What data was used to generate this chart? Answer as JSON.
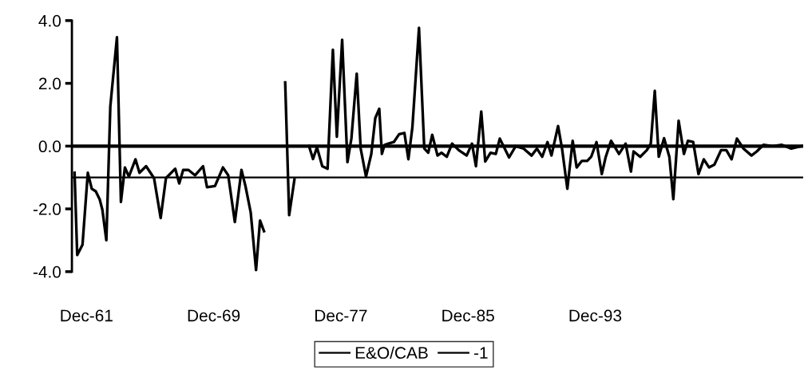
{
  "chart_data": {
    "type": "line",
    "legend": "bottom",
    "grid": false,
    "marker": "none",
    "line_style": "solid",
    "xlim": [
      "1961-01",
      "2007-01"
    ],
    "ylim": [
      -4.0,
      4.0
    ],
    "xticks": [
      {
        "value": "1961-12",
        "label": "Dec-61"
      },
      {
        "value": "1969-12",
        "label": "Dec-69"
      },
      {
        "value": "1977-12",
        "label": "Dec-77"
      },
      {
        "value": "1985-12",
        "label": "Dec-85"
      },
      {
        "value": "1993-12",
        "label": "Dec-93"
      }
    ],
    "yticks": [
      {
        "value": -4,
        "label": "-4.0"
      },
      {
        "value": -2,
        "label": "-2.0"
      },
      {
        "value": 0,
        "label": "0.0"
      },
      {
        "value": 2,
        "label": "2.0"
      },
      {
        "value": 4,
        "label": "4.0"
      }
    ],
    "ref_lines": [
      {
        "axis": "y",
        "value": 0,
        "color": "#000000"
      }
    ],
    "series": [
      {
        "name": "E&O/CAB",
        "color": "#000000",
        "x": [
          "1961-03",
          "1961-05",
          "1961-09",
          "1962-01",
          "1962-04",
          "1962-07",
          "1962-10",
          "1962-12",
          "1963-03",
          "1963-06",
          "1963-11",
          "1964-02",
          "1964-05",
          "1964-08",
          "1965-01",
          "1965-04",
          "1965-09",
          "1966-03",
          "1966-08",
          "1966-12",
          "1967-07",
          "1967-10",
          "1968-01",
          "1968-05",
          "1968-10",
          "1969-04",
          "1969-07",
          "1970-01",
          "1970-07",
          "1970-11",
          "1971-04",
          "1971-09",
          "1971-12",
          "1972-04",
          "1972-08",
          "1972-11",
          "1973-02",
          "1973-08",
          "1974-06",
          "1974-09",
          "1975-01",
          "1975-06",
          "1975-12",
          "1976-03",
          "1976-06",
          "1976-10",
          "1977-02",
          "1977-06",
          "1977-09",
          "1978-01",
          "1978-05",
          "1978-08",
          "1978-12",
          "1979-03",
          "1979-07",
          "1979-11",
          "1980-02",
          "1980-05",
          "1980-07",
          "1980-09",
          "1980-12",
          "1981-04",
          "1981-08",
          "1981-12",
          "1982-03",
          "1982-06",
          "1982-11",
          "1983-03",
          "1983-06",
          "1983-09",
          "1984-01",
          "1984-04",
          "1984-08",
          "1984-12",
          "1985-05",
          "1985-11",
          "1986-03",
          "1986-06",
          "1986-10",
          "1987-01",
          "1987-05",
          "1987-09",
          "1987-12",
          "1988-07",
          "1988-12",
          "1989-06",
          "1989-12",
          "1990-04",
          "1990-08",
          "1990-12",
          "1991-03",
          "1991-08",
          "1991-11",
          "1992-03",
          "1992-07",
          "1992-10",
          "1993-02",
          "1993-06",
          "1993-09",
          "1994-01",
          "1994-05",
          "1994-08",
          "1994-12",
          "1995-06",
          "1995-11",
          "1996-03",
          "1996-05",
          "1996-10",
          "1997-03",
          "1997-06",
          "1997-09",
          "1997-12",
          "1998-04",
          "1998-08",
          "1998-11",
          "1999-03",
          "1999-07",
          "1999-10",
          "2000-02",
          "2000-06",
          "2000-10",
          "2001-02",
          "2001-06",
          "2001-11",
          "2002-03",
          "2002-07",
          "2002-11",
          "2003-04",
          "2003-10",
          "2004-02",
          "2004-07",
          "2005-02",
          "2005-09",
          "2006-04",
          "2006-12"
        ],
        "values": [
          -0.85,
          -3.47,
          -3.14,
          -0.85,
          -1.36,
          -1.44,
          -1.7,
          -2.03,
          -3.0,
          1.27,
          3.47,
          -1.78,
          -0.68,
          -0.97,
          -0.42,
          -0.85,
          -0.64,
          -1.02,
          -2.29,
          -1.02,
          -0.72,
          -1.19,
          -0.76,
          -0.76,
          -0.93,
          -0.64,
          -1.31,
          -1.27,
          -0.68,
          -0.93,
          -2.42,
          -0.76,
          -1.27,
          -2.12,
          -3.95,
          -2.37,
          -2.71,
          null,
          2.03,
          -2.2,
          -1.06,
          null,
          0,
          -0.41,
          -0.04,
          -0.64,
          -0.72,
          3.07,
          0.3,
          3.39,
          -0.51,
          0.25,
          2.31,
          -0.08,
          -0.97,
          -0.25,
          0.89,
          1.19,
          -0.25,
          0.04,
          0.08,
          0.13,
          0.38,
          0.42,
          -0.42,
          0.59,
          3.77,
          -0.08,
          -0.21,
          0.36,
          -0.3,
          -0.21,
          -0.34,
          0.08,
          -0.13,
          -0.3,
          0.08,
          -0.64,
          1.1,
          -0.49,
          -0.21,
          -0.25,
          0.24,
          -0.36,
          0,
          -0.08,
          -0.3,
          -0.08,
          -0.34,
          0.13,
          -0.3,
          0.64,
          -0.08,
          -1.36,
          0.17,
          -0.68,
          -0.47,
          -0.47,
          -0.34,
          0.13,
          -0.89,
          -0.34,
          0.17,
          -0.25,
          0.08,
          -0.81,
          -0.17,
          -0.34,
          -0.13,
          0.08,
          1.76,
          -0.34,
          0.25,
          -0.34,
          -1.69,
          0.81,
          -0.25,
          0.17,
          0.13,
          -0.89,
          -0.42,
          -0.68,
          -0.59,
          -0.13,
          -0.13,
          -0.42,
          0.24,
          -0.08,
          -0.3,
          -0.17,
          0.04,
          0,
          0.04,
          -0.08,
          0
        ]
      },
      {
        "name": "-1",
        "color": "#000000",
        "x": [
          "1961-01",
          "2007-01"
        ],
        "values": [
          -1,
          -1
        ]
      }
    ]
  }
}
